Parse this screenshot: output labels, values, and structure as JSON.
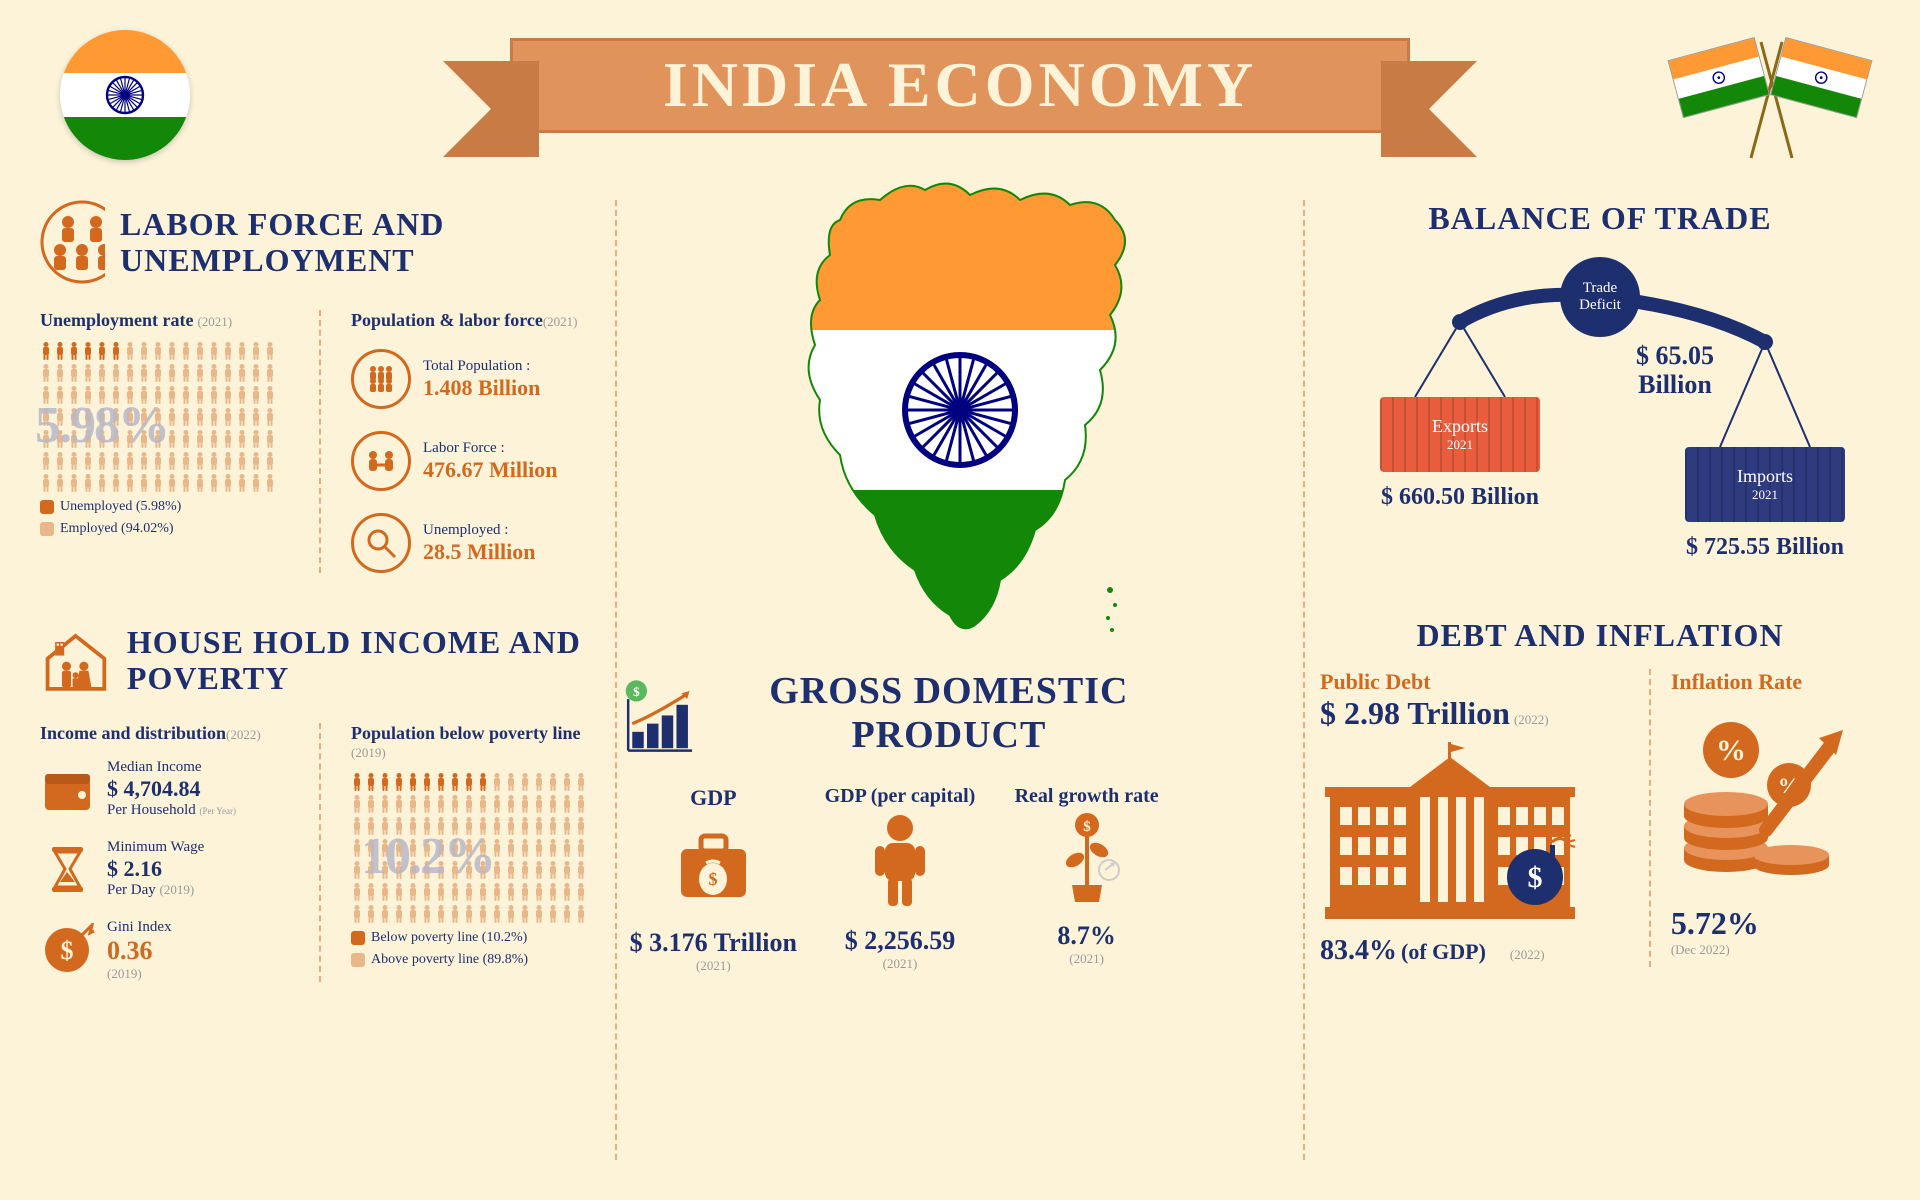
{
  "title": "INDIA ECONOMY",
  "colors": {
    "background": "#fcf3d9",
    "navy": "#1e2f6f",
    "orange": "#d2691e",
    "banner": "#e0935b",
    "banner_border": "#c97b45",
    "saffron": "#ff9933",
    "green": "#138808",
    "grey_pct": "#b8b8c8",
    "exports_box": "#e85d3d",
    "imports_box": "#2e3b7f",
    "light_orange": "#e8b88a"
  },
  "labor": {
    "heading": "LABOR FORCE AND UNEMPLOYMENT",
    "unemployment_label": "Unemployment rate",
    "unemployment_year": "(2021)",
    "unemployment_pct": "5.98%",
    "legend_unemployed": "Unemployed (5.98%)",
    "legend_employed": "Employed (94.02%)",
    "pop_label": "Population & labor force",
    "pop_year": "(2021)",
    "total_pop_label": "Total Population :",
    "total_pop_value": "1.408 Billion",
    "labor_force_label": "Labor Force :",
    "labor_force_value": "476.67 Million",
    "unemployed_label": "Unemployed :",
    "unemployed_value": "28.5 Million"
  },
  "household": {
    "heading": "HOUSE HOLD INCOME AND POVERTY",
    "income_label": "Income and distribution",
    "income_year": "(2022)",
    "median_income_label": "Median Income",
    "median_income_value": "$ 4,704.84",
    "median_income_sub": "Per Household",
    "median_income_note": "(Per Year)",
    "min_wage_label": "Minimum Wage",
    "min_wage_value": "$ 2.16",
    "min_wage_sub": "Per Day",
    "min_wage_year": "(2019)",
    "gini_label": "Gini Index",
    "gini_value": "0.36",
    "gini_year": "(2019)",
    "poverty_label": "Population below poverty line",
    "poverty_year": "(2019)",
    "poverty_pct": "10.2%",
    "legend_below": "Below poverty line  (10.2%)",
    "legend_above": "Above poverty line (89.8%)"
  },
  "gdp": {
    "heading": "GROSS DOMESTIC PRODUCT",
    "gdp_label": "GDP",
    "gdp_value": "$ 3.176 Trillion",
    "gdp_year": "(2021)",
    "per_capita_label": "GDP (per capital)",
    "per_capita_value": "$ 2,256.59",
    "per_capita_year": "(2021)",
    "growth_label": "Real growth rate",
    "growth_value": "8.7%",
    "growth_year": "(2021)"
  },
  "trade": {
    "heading": "BALANCE OF TRADE",
    "deficit_label1": "Trade",
    "deficit_label2": "Deficit",
    "deficit_value": "$ 65.05 Billion",
    "exports_label": "Exports",
    "exports_year": "2021",
    "exports_value": "$ 660.50 Billion",
    "imports_label": "Imports",
    "imports_year": "2021",
    "imports_value": "$ 725.55 Billion"
  },
  "debt": {
    "heading": "DEBT AND INFLATION",
    "public_debt_label": "Public Debt",
    "public_debt_value": "$ 2.98 Trillion",
    "public_debt_year": "(2022)",
    "of_gdp_value": "83.4%",
    "of_gdp_label": "(of GDP)",
    "of_gdp_year": "(2022)",
    "inflation_label": "Inflation Rate",
    "inflation_value": "5.72%",
    "inflation_year": "(Dec 2022)"
  }
}
